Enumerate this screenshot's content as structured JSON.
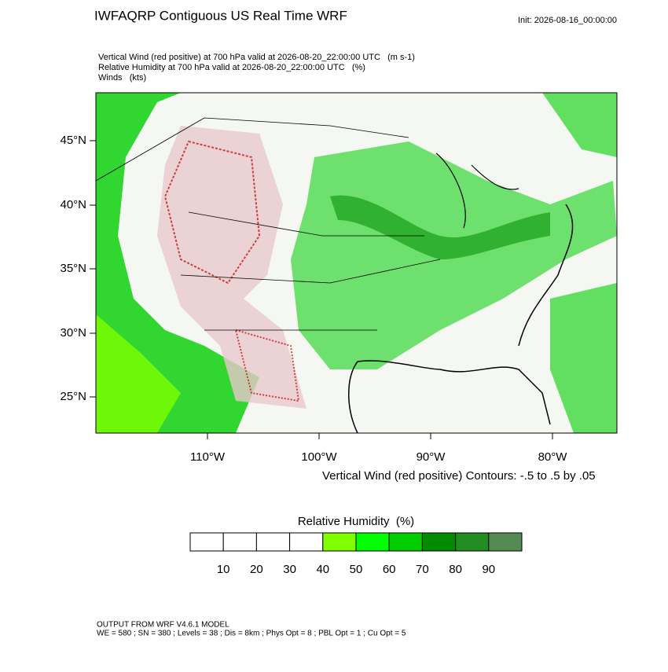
{
  "header": {
    "title": "IWFAQRP Contiguous US Real Time WRF",
    "init": "Init: 2026-08-16_00:00:00"
  },
  "subtitle": [
    "Vertical Wind (red positive) at 700 hPa valid at 2026-08-20_22:00:00 UTC   (m s-1)",
    "Relative Humidity at 700 hPa valid at 2026-08-20_22:00:00 UTC   (%)",
    "Winds   (kts)"
  ],
  "map": {
    "lat_labels": [
      "45°N",
      "40°N",
      "35°N",
      "30°N",
      "25°N"
    ],
    "lon_labels": [
      "110°W",
      "100°W",
      "90°W",
      "80°W"
    ],
    "contour_note": "Vertical Wind (red positive) Contours: -.5 to .5 by .05"
  },
  "colorbar": {
    "title": "Relative Humidity  (%)",
    "colors": [
      "#ffffff",
      "#ffffff",
      "#ffffff",
      "#ffffff",
      "#80ff00",
      "#00ff00",
      "#00cd00",
      "#008b00",
      "#228b22",
      "#548b54"
    ],
    "labels": [
      "10",
      "20",
      "30",
      "40",
      "50",
      "60",
      "70",
      "80",
      "90"
    ]
  },
  "footer": [
    "OUTPUT FROM WRF V4.6.1 MODEL",
    "WE = 580 ; SN = 380 ; Levels = 38 ; Dis = 8km ; Phys Opt = 8 ; PBL Opt = 1 ; Cu Opt = 5"
  ]
}
